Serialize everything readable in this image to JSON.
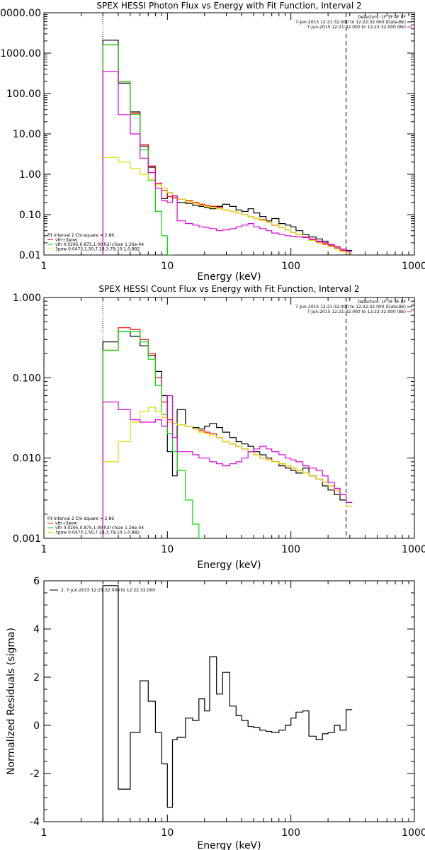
{
  "chart_data": [
    {
      "type": "line",
      "title": "SPEX HESSI Photon Flux vs Energy with Fit Function, Interval 2",
      "xlabel": "Energy (keV)",
      "ylabel": "",
      "xscale": "log",
      "yscale": "log",
      "xlim": [
        1,
        1000
      ],
      "ylim": [
        0.01,
        10000
      ],
      "xticks": [
        "1",
        "10",
        "100",
        "1000"
      ],
      "yticks": [
        "0000.00",
        "1000.00",
        "100.00",
        "10.00",
        "1.00",
        "0.10",
        "0.01"
      ],
      "legend_top_right": [
        "Detectors: 1F 3F 4F 8F",
        "7-Jun-2015 12:21:32.000 to 12:22:32.000 (Data-Bk)",
        "7-Jun-2015 12:21:32.000 to 12:22:32.000 (Bk)"
      ],
      "legend_bottom_left": [
        "Fit Interval 2   Chi-square = 2.86",
        "vth+3pow",
        "vth 0.0295,0.875,1.00  full chian 1.26e-04",
        "3pow 0.0473,1.50,7.28,3.79,10.1,0.882"
      ],
      "vlines": [
        3,
        280
      ],
      "series": [
        {
          "name": "Data-Bk",
          "color": "#000000",
          "x": [
            3,
            4,
            5,
            6,
            7,
            8,
            9,
            10,
            11,
            12,
            14,
            16,
            18,
            20,
            22,
            25,
            28,
            32,
            36,
            40,
            45,
            50,
            56,
            63,
            70,
            80,
            90,
            100,
            110,
            125,
            140,
            160,
            180,
            200,
            225,
            250,
            280
          ],
          "y": [
            2100,
            180,
            35,
            5,
            1.5,
            0.6,
            0.25,
            0.35,
            0.28,
            0.2,
            0.19,
            0.17,
            0.16,
            0.15,
            0.14,
            0.16,
            0.18,
            0.16,
            0.13,
            0.12,
            0.14,
            0.11,
            0.09,
            0.07,
            0.08,
            0.06,
            0.055,
            0.05,
            0.04,
            0.032,
            0.028,
            0.025,
            0.022,
            0.018,
            0.016,
            0.014,
            0.013
          ]
        },
        {
          "name": "vth+3pow",
          "color": "#ff0000",
          "x": [
            3,
            4,
            5,
            6,
            7,
            8,
            9,
            10,
            11,
            12,
            14,
            16,
            18,
            20,
            22,
            25,
            28,
            32,
            36,
            40,
            45,
            50,
            56,
            63,
            70,
            80,
            90,
            100,
            110,
            125,
            140,
            160,
            180,
            200,
            225,
            250,
            280
          ],
          "y": [
            1600,
            200,
            32,
            5.5,
            1.6,
            0.6,
            0.4,
            0.28,
            0.26,
            0.24,
            0.22,
            0.2,
            0.18,
            0.17,
            0.16,
            0.15,
            0.13,
            0.12,
            0.11,
            0.1,
            0.09,
            0.08,
            0.075,
            0.065,
            0.055,
            0.048,
            0.042,
            0.036,
            0.032,
            0.028,
            0.024,
            0.021,
            0.019,
            0.017,
            0.015,
            0.013,
            0.011
          ]
        },
        {
          "name": "vth",
          "color": "#00dd00",
          "x": [
            3,
            4,
            5,
            6,
            7,
            8,
            9,
            10
          ],
          "y": [
            1600,
            200,
            30,
            4,
            0.7,
            0.12,
            0.03,
            0.01
          ]
        },
        {
          "name": "3pow",
          "color": "#dddd00",
          "x": [
            3,
            4,
            5,
            6,
            7,
            8,
            9,
            10,
            11,
            12,
            14,
            16,
            18,
            20,
            22,
            25,
            28,
            32,
            36,
            40,
            45,
            50,
            56,
            63,
            70,
            80,
            90,
            100,
            110,
            125,
            140,
            160,
            180,
            200,
            225,
            250,
            280
          ],
          "y": [
            2.6,
            2,
            1.4,
            1,
            0.75,
            0.55,
            0.45,
            0.35,
            0.28,
            0.24,
            0.21,
            0.19,
            0.17,
            0.16,
            0.15,
            0.14,
            0.13,
            0.12,
            0.11,
            0.1,
            0.09,
            0.08,
            0.072,
            0.064,
            0.056,
            0.048,
            0.042,
            0.036,
            0.032,
            0.027,
            0.023,
            0.02,
            0.018,
            0.016,
            0.014,
            0.012,
            0.011
          ]
        },
        {
          "name": "Bk",
          "color": "#dd00dd",
          "x": [
            3,
            4,
            5,
            6,
            7,
            8,
            9,
            10,
            11,
            12,
            14,
            16,
            18,
            20,
            22,
            25,
            28,
            32,
            36,
            40,
            45,
            50,
            56,
            63,
            70,
            80,
            90,
            100,
            110,
            125,
            140,
            160,
            180,
            200,
            225,
            250,
            280
          ],
          "y": [
            350,
            30,
            10,
            2.5,
            1.1,
            0.45,
            0.22,
            0.2,
            0.3,
            0.07,
            0.06,
            0.055,
            0.05,
            0.048,
            0.045,
            0.04,
            0.042,
            0.045,
            0.05,
            0.055,
            0.06,
            0.05,
            0.045,
            0.04,
            0.035,
            0.032,
            0.03,
            0.029,
            0.028,
            0.027,
            0.025,
            0.022,
            0.02,
            0.018,
            0.016,
            0.014,
            0.012
          ]
        }
      ]
    },
    {
      "type": "line",
      "title": "SPEX HESSI Count Flux vs Energy with Fit Function, Interval 2",
      "xlabel": "Energy (keV)",
      "ylabel": "",
      "xscale": "log",
      "yscale": "log",
      "xlim": [
        1,
        1000
      ],
      "ylim": [
        0.001,
        1
      ],
      "xticks": [
        "1",
        "10",
        "100",
        "1000"
      ],
      "yticks": [
        "1.000",
        "0.100",
        "0.010",
        "0.001"
      ],
      "legend_top_right": [
        "Detectors: 1F 3F 4F 8F",
        "7-Jun-2015 12:21:32.000 to 12:22:32.000 (Data-Bk)",
        "7-Jun-2015 12:21:32.000 to 12:22:32.000 (Bk)"
      ],
      "legend_bottom_left": [
        "Fit Interval 2   Chi-square = 2.86",
        "vth+3pow",
        "vth 0.0295,0.875,1.00  full chian 1.26e-04",
        "3pow 0.0473,1.50,7.28,3.79,10.1,0.882"
      ],
      "vlines": [
        3,
        280
      ],
      "series": [
        {
          "name": "Data-Bk",
          "color": "#000000",
          "x": [
            3,
            4,
            5,
            6,
            7,
            8,
            9,
            10,
            11,
            12,
            14,
            16,
            18,
            20,
            22,
            25,
            28,
            32,
            36,
            40,
            45,
            50,
            56,
            63,
            70,
            80,
            90,
            100,
            110,
            125,
            140,
            160,
            180,
            200,
            225,
            250,
            280
          ],
          "y": [
            0.28,
            0.38,
            0.33,
            0.25,
            0.19,
            0.12,
            0.06,
            0.012,
            0.006,
            0.04,
            0.025,
            0.024,
            0.023,
            0.025,
            0.027,
            0.024,
            0.021,
            0.018,
            0.016,
            0.015,
            0.014,
            0.012,
            0.011,
            0.01,
            0.009,
            0.008,
            0.0075,
            0.007,
            0.0065,
            0.0075,
            0.006,
            0.0055,
            0.0045,
            0.004,
            0.0035,
            0.003,
            0.0028
          ]
        },
        {
          "name": "vth+3pow",
          "color": "#ff0000",
          "x": [
            3,
            4,
            5,
            6,
            7,
            8,
            9,
            10,
            11,
            12,
            14,
            16,
            18,
            20,
            22,
            25,
            28,
            32,
            36,
            40,
            45,
            50,
            56,
            63,
            70,
            80,
            90,
            100,
            110,
            125,
            140,
            160,
            180,
            200,
            225,
            250,
            280
          ],
          "y": [
            0.22,
            0.42,
            0.4,
            0.3,
            0.2,
            0.1,
            0.05,
            0.03,
            0.027,
            0.026,
            0.025,
            0.023,
            0.022,
            0.021,
            0.02,
            0.018,
            0.016,
            0.015,
            0.014,
            0.013,
            0.012,
            0.011,
            0.01,
            0.0095,
            0.009,
            0.0085,
            0.008,
            0.0075,
            0.007,
            0.0065,
            0.006,
            0.0055,
            0.005,
            0.0045,
            0.004,
            0.0035,
            0.0025
          ]
        },
        {
          "name": "vth",
          "color": "#00dd00",
          "x": [
            3,
            4,
            5,
            6,
            7,
            8,
            9,
            10,
            11,
            12,
            14,
            16,
            18
          ],
          "y": [
            0.22,
            0.38,
            0.38,
            0.28,
            0.17,
            0.08,
            0.035,
            0.02,
            0.012,
            0.007,
            0.003,
            0.0015,
            0.001
          ]
        },
        {
          "name": "3pow",
          "color": "#dddd00",
          "x": [
            3,
            4,
            5,
            6,
            7,
            8,
            9,
            10,
            11,
            12,
            14,
            16,
            18,
            20,
            22,
            25,
            28,
            32,
            36,
            40,
            45,
            50,
            56,
            63,
            70,
            80,
            90,
            100,
            110,
            125,
            140,
            160,
            180,
            200,
            225,
            250,
            280
          ],
          "y": [
            0.009,
            0.016,
            0.028,
            0.038,
            0.043,
            0.038,
            0.032,
            0.028,
            0.027,
            0.026,
            0.025,
            0.023,
            0.021,
            0.02,
            0.019,
            0.018,
            0.016,
            0.015,
            0.014,
            0.013,
            0.012,
            0.011,
            0.01,
            0.0095,
            0.009,
            0.0085,
            0.008,
            0.0075,
            0.007,
            0.0065,
            0.006,
            0.0055,
            0.005,
            0.0045,
            0.004,
            0.0035,
            0.0025
          ]
        },
        {
          "name": "Bk",
          "color": "#dd00dd",
          "x": [
            3,
            4,
            5,
            6,
            7,
            8,
            9,
            10,
            11,
            12,
            14,
            16,
            18,
            20,
            22,
            25,
            28,
            32,
            36,
            40,
            45,
            50,
            56,
            63,
            70,
            80,
            90,
            100,
            110,
            125,
            140,
            160,
            180,
            200,
            225,
            250,
            280
          ],
          "y": [
            0.05,
            0.04,
            0.03,
            0.028,
            0.028,
            0.03,
            0.025,
            0.06,
            0.018,
            0.012,
            0.012,
            0.011,
            0.01,
            0.01,
            0.009,
            0.0085,
            0.008,
            0.0085,
            0.009,
            0.01,
            0.012,
            0.013,
            0.014,
            0.013,
            0.012,
            0.011,
            0.01,
            0.0095,
            0.009,
            0.008,
            0.0075,
            0.007,
            0.006,
            0.005,
            0.0042,
            0.0035,
            0.0028
          ]
        }
      ]
    },
    {
      "type": "line",
      "title": "",
      "xlabel": "Energy (keV)",
      "ylabel": "Normalized Residuals (sigma)",
      "xscale": "log",
      "yscale": "linear",
      "xlim": [
        1,
        1000
      ],
      "ylim": [
        -4,
        6
      ],
      "xticks": [
        "1",
        "10",
        "100",
        "1000"
      ],
      "yticks": [
        "6",
        "4",
        "2",
        "0",
        "-2",
        "-4"
      ],
      "legend_top_left": "2.  7-Jun-2015 12:21:32.000 to 12:22:32.000",
      "series": [
        {
          "name": "",
          "color": "#000000",
          "x": [
            3,
            4,
            5,
            6,
            7,
            8,
            9,
            10,
            11,
            12,
            14,
            16,
            18,
            20,
            22,
            25,
            28,
            32,
            36,
            40,
            45,
            50,
            56,
            63,
            70,
            80,
            90,
            100,
            110,
            125,
            140,
            160,
            180,
            200,
            225,
            250,
            280
          ],
          "y": [
            5.8,
            -2.65,
            -0.3,
            1.85,
            1.0,
            -0.3,
            -1.6,
            -3.4,
            -0.6,
            -0.5,
            0.3,
            0.2,
            1.1,
            0.6,
            2.85,
            1.3,
            2.2,
            0.8,
            0.4,
            0.2,
            -0.05,
            -0.1,
            -0.2,
            -0.25,
            -0.3,
            -0.2,
            0.0,
            0.3,
            0.55,
            0.6,
            -0.45,
            -0.6,
            -0.35,
            -0.3,
            0.0,
            -0.2,
            0.65
          ]
        }
      ]
    }
  ]
}
